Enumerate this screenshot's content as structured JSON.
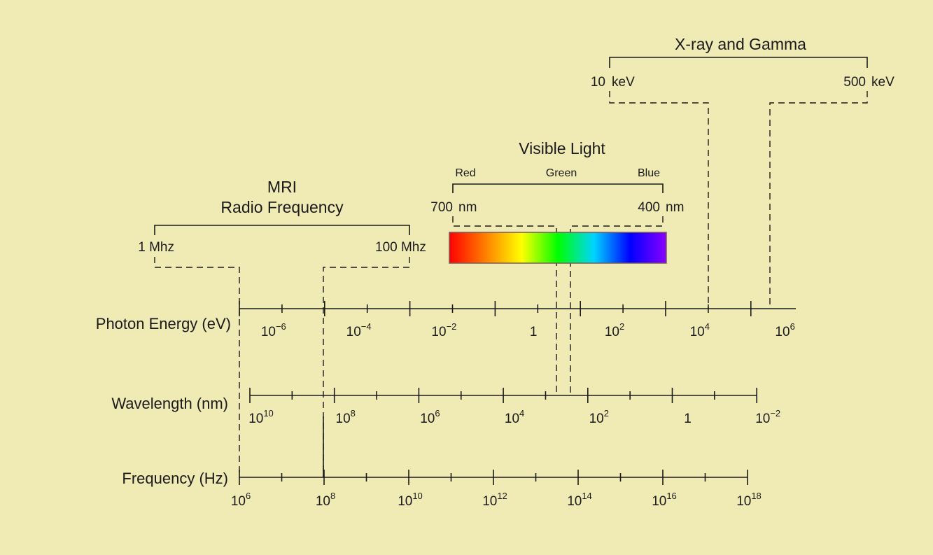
{
  "axes": {
    "photon_energy": {
      "label": "Photon Energy (eV)",
      "ticks": [
        {
          "base": "10",
          "exp": "−6"
        },
        {
          "base": "10",
          "exp": "−4"
        },
        {
          "base": "10",
          "exp": "−2"
        },
        {
          "base": "1",
          "exp": ""
        },
        {
          "base": "10",
          "exp": "2"
        },
        {
          "base": "10",
          "exp": "4"
        },
        {
          "base": "10",
          "exp": "6"
        }
      ]
    },
    "wavelength": {
      "label": "Wavelength (nm)",
      "ticks": [
        {
          "base": "10",
          "exp": "10"
        },
        {
          "base": "10",
          "exp": "8"
        },
        {
          "base": "10",
          "exp": "6"
        },
        {
          "base": "10",
          "exp": "4"
        },
        {
          "base": "10",
          "exp": "2"
        },
        {
          "base": "1",
          "exp": ""
        },
        {
          "base": "10",
          "exp": "−2"
        }
      ]
    },
    "frequency": {
      "label": "Frequency (Hz)",
      "ticks": [
        {
          "base": "10",
          "exp": "6"
        },
        {
          "base": "10",
          "exp": "8"
        },
        {
          "base": "10",
          "exp": "10"
        },
        {
          "base": "10",
          "exp": "12"
        },
        {
          "base": "10",
          "exp": "14"
        },
        {
          "base": "10",
          "exp": "16"
        },
        {
          "base": "10",
          "exp": "18"
        }
      ]
    }
  },
  "bands": {
    "mri": {
      "title_line1": "MRI",
      "title_line2": "Radio Frequency",
      "low_label": "1 Mhz",
      "high_label": "100 Mhz"
    },
    "visible": {
      "title": "Visible Light",
      "color_red": "Red",
      "color_green": "Green",
      "color_blue": "Blue",
      "low_label_num": "700",
      "low_label_unit": "nm",
      "high_label_num": "400",
      "high_label_unit": "nm",
      "spectrum_colors": [
        "#ff0000",
        "#ff7f00",
        "#ffff00",
        "#00ff00",
        "#00d4ff",
        "#0000ff",
        "#8b00ff"
      ]
    },
    "xray": {
      "title": "X-ray and Gamma",
      "low_label_num": "10",
      "low_label_unit": "keV",
      "high_label_num": "500",
      "high_label_unit": "keV"
    }
  },
  "colors": {
    "background": "#f0ebb4",
    "ink": "#1a1a1a"
  }
}
